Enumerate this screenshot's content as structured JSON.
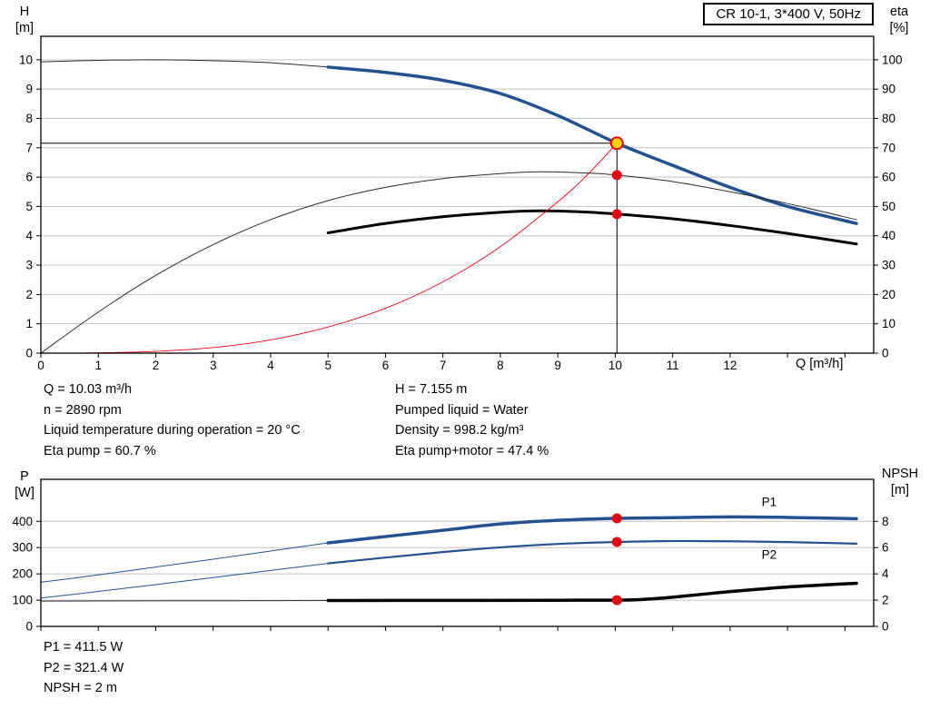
{
  "title_box": "CR 10-1, 3*400 V, 50Hz",
  "axes_labels": {
    "top_left_1": "H",
    "top_left_2": "[m]",
    "top_right_1": "eta",
    "top_right_2": "[%]",
    "x_axis": "Q [m³/h]",
    "bottom_left_1": "P",
    "bottom_left_2": "[W]",
    "bottom_right_1": "NPSH",
    "bottom_right_2": "[m]"
  },
  "operating_info": {
    "left": [
      "Q = 10.03 m³/h",
      "n = 2890 rpm",
      "Liquid temperature during operation = 20 °C",
      "Eta pump = 60.7 %"
    ],
    "right": [
      "H = 7.155 m",
      "Pumped liquid = Water",
      "Density = 998.2 kg/m³",
      "Eta pump+motor = 47.4 %"
    ]
  },
  "power_info": [
    "P1 = 411.5 W",
    "P2 = 321.4 W",
    "NPSH = 2 m"
  ],
  "colors": {
    "curve_blue": "#24518f",
    "curve_red": "#e30613",
    "marker_yellow": "#ffd500",
    "grid_gray": "#c4c4c4",
    "black": "#000000"
  },
  "chart_data": [
    {
      "id": "hq-eta-chart",
      "type": "line",
      "title": "CR 10-1, 3*400 V, 50Hz",
      "x_axis": {
        "label": "Q [m³/h]",
        "min": 0,
        "max": 14.5,
        "ticks": [
          0,
          1,
          2,
          3,
          4,
          5,
          6,
          7,
          8,
          9,
          10,
          11,
          12,
          13,
          14
        ],
        "labels": [
          0,
          1,
          2,
          3,
          4,
          5,
          6,
          7,
          8,
          9,
          10,
          11,
          12
        ]
      },
      "y_left": {
        "label": "H [m]",
        "min": 0,
        "max": 10.8,
        "ticks": [
          0,
          1,
          2,
          3,
          4,
          5,
          6,
          7,
          8,
          9,
          10
        ],
        "grid": [
          1,
          2,
          3,
          4,
          5,
          6,
          7,
          8,
          9,
          10
        ]
      },
      "y_right": {
        "label": "eta [%]",
        "min": 0,
        "max": 108,
        "ticks": [
          0,
          10,
          20,
          30,
          40,
          50,
          60,
          70,
          80,
          90,
          100
        ]
      },
      "ref_lines": [
        {
          "name": "duty-head-line",
          "axis": "left",
          "color": "#000000",
          "width": 1,
          "points": [
            [
              0,
              7.155
            ],
            [
              10.03,
              7.155
            ]
          ]
        },
        {
          "name": "duty-flow-line",
          "axis": "left",
          "color": "#000000",
          "width": 1,
          "points": [
            [
              10.03,
              0
            ],
            [
              10.03,
              7.155
            ]
          ]
        }
      ],
      "series": [
        {
          "name": "head-curve-low-flow",
          "axis": "left",
          "color": "#2a2a2a",
          "width": 1,
          "points": [
            [
              0,
              9.93
            ],
            [
              1,
              9.98
            ],
            [
              2,
              10.0
            ],
            [
              3,
              9.97
            ],
            [
              4,
              9.9
            ],
            [
              5,
              9.75
            ]
          ]
        },
        {
          "name": "head-curve-main",
          "axis": "left",
          "color": "#24518f",
          "width": 3.5,
          "points": [
            [
              5,
              9.75
            ],
            [
              6,
              9.57
            ],
            [
              7,
              9.3
            ],
            [
              8,
              8.85
            ],
            [
              9,
              8.1
            ],
            [
              10.03,
              7.155
            ],
            [
              11,
              6.4
            ],
            [
              12,
              5.65
            ],
            [
              13,
              5.0
            ],
            [
              14.2,
              4.42
            ]
          ]
        },
        {
          "name": "eta-pump-curve",
          "axis": "right",
          "color": "#2a2a2a",
          "width": 1,
          "points": [
            [
              0,
              0
            ],
            [
              1,
              14
            ],
            [
              2,
              26.5
            ],
            [
              3,
              37
            ],
            [
              4,
              45.5
            ],
            [
              5,
              52
            ],
            [
              6,
              56.5
            ],
            [
              7,
              59.5
            ],
            [
              8,
              61.2
            ],
            [
              8.7,
              61.8
            ],
            [
              9.5,
              61.4
            ],
            [
              10.03,
              60.7
            ],
            [
              11,
              58.5
            ],
            [
              12,
              55
            ],
            [
              13,
              51
            ],
            [
              14.2,
              45.5
            ]
          ]
        },
        {
          "name": "eta-pump-motor-curve",
          "axis": "right",
          "color": "#000000",
          "width": 3,
          "points": [
            [
              5,
              41
            ],
            [
              6,
              44.2
            ],
            [
              7,
              46.5
            ],
            [
              8,
              48
            ],
            [
              8.7,
              48.5
            ],
            [
              9.5,
              48.1
            ],
            [
              10.03,
              47.4
            ],
            [
              11,
              45.8
            ],
            [
              12,
              43.5
            ],
            [
              13,
              40.8
            ],
            [
              14.2,
              37.2
            ]
          ]
        },
        {
          "name": "system-curve",
          "axis": "left",
          "color": "#e30613",
          "width": 0.9,
          "points": [
            [
              0,
              0
            ],
            [
              1,
              0.01
            ],
            [
              2,
              0.06
            ],
            [
              3,
              0.19
            ],
            [
              4,
              0.45
            ],
            [
              5,
              0.89
            ],
            [
              6,
              1.53
            ],
            [
              7,
              2.43
            ],
            [
              8,
              3.63
            ],
            [
              9,
              5.16
            ],
            [
              9.5,
              6.05
            ],
            [
              10.03,
              7.155
            ]
          ]
        }
      ],
      "markers": [
        {
          "name": "duty-point",
          "x": 10.03,
          "y": 7.155,
          "axis": "left",
          "r": 6.5,
          "fill": "#ffd500",
          "stroke": "#e30613",
          "stroke_width": 2
        },
        {
          "name": "eta-pump-point",
          "x": 10.03,
          "y": 60.7,
          "axis": "right",
          "r": 5,
          "fill": "#e30613",
          "stroke": "#e30613",
          "stroke_width": 1
        },
        {
          "name": "eta-pump-motor-point",
          "x": 10.03,
          "y": 47.4,
          "axis": "right",
          "r": 5,
          "fill": "#e30613",
          "stroke": "#e30613",
          "stroke_width": 1
        }
      ],
      "annotations": []
    },
    {
      "id": "power-npsh-chart",
      "type": "line",
      "x_axis": {
        "label": "",
        "min": 0,
        "max": 14.5,
        "ticks": [
          0,
          1,
          2,
          3,
          4,
          5,
          6,
          7,
          8,
          9,
          10,
          11,
          12,
          13,
          14
        ],
        "labels": []
      },
      "y_left": {
        "label": "P [W]",
        "min": 0,
        "max": 560,
        "ticks": [
          0,
          100,
          200,
          300,
          400
        ],
        "grid": [
          100,
          200,
          300,
          400
        ]
      },
      "y_right": {
        "label": "NPSH [m]",
        "min": 0,
        "max": 11.2,
        "ticks": [
          0,
          2,
          4,
          6,
          8
        ]
      },
      "ref_lines": [],
      "series": [
        {
          "name": "p1-curve-low-flow",
          "axis": "left",
          "color": "#24518f",
          "width": 1,
          "points": [
            [
              0,
              168
            ],
            [
              1,
              196
            ],
            [
              2,
              226
            ],
            [
              3,
              256
            ],
            [
              4,
              287
            ],
            [
              5,
              318
            ]
          ]
        },
        {
          "name": "p2-curve-low-flow",
          "axis": "left",
          "color": "#24518f",
          "width": 1,
          "points": [
            [
              0,
              108
            ],
            [
              1,
              133
            ],
            [
              2,
              159
            ],
            [
              3,
              186
            ],
            [
              4,
              213
            ],
            [
              5,
              240
            ]
          ]
        },
        {
          "name": "npsh-curve-low-flow",
          "axis": "right",
          "color": "#2a2a2a",
          "width": 1,
          "points": [
            [
              0,
              1.93
            ],
            [
              2.5,
              1.95
            ],
            [
              5,
              1.97
            ]
          ]
        },
        {
          "name": "p1-curve",
          "axis": "left",
          "color": "#24518f",
          "width": 3.5,
          "points": [
            [
              5,
              318
            ],
            [
              6,
              342
            ],
            [
              7,
              366
            ],
            [
              8,
              390
            ],
            [
              9,
              404
            ],
            [
              10.03,
              411.5
            ],
            [
              11,
              414
            ],
            [
              12,
              417
            ],
            [
              13,
              415
            ],
            [
              14.2,
              410
            ]
          ]
        },
        {
          "name": "p2-curve",
          "axis": "left",
          "color": "#24518f",
          "width": 2.2,
          "points": [
            [
              5,
              240
            ],
            [
              6,
              262
            ],
            [
              7,
              283
            ],
            [
              8,
              301
            ],
            [
              9,
              314
            ],
            [
              10.03,
              321.4
            ],
            [
              11,
              325
            ],
            [
              12,
              324
            ],
            [
              13,
              321
            ],
            [
              14.2,
              315
            ]
          ]
        },
        {
          "name": "npsh-curve",
          "axis": "right",
          "color": "#000000",
          "width": 3.5,
          "points": [
            [
              5,
              1.97
            ],
            [
              7,
              1.98
            ],
            [
              9,
              1.99
            ],
            [
              10.03,
              2.0
            ],
            [
              10.5,
              2.06
            ],
            [
              11,
              2.22
            ],
            [
              12,
              2.65
            ],
            [
              13,
              3.0
            ],
            [
              14.2,
              3.28
            ]
          ]
        }
      ],
      "markers": [
        {
          "name": "p1-duty-point",
          "x": 10.03,
          "y": 411.5,
          "axis": "left",
          "r": 5,
          "fill": "#e30613",
          "stroke": "#e30613",
          "stroke_width": 1
        },
        {
          "name": "p2-duty-point",
          "x": 10.03,
          "y": 321.4,
          "axis": "left",
          "r": 5,
          "fill": "#e30613",
          "stroke": "#e30613",
          "stroke_width": 1
        },
        {
          "name": "npsh-duty-point",
          "x": 10.03,
          "y": 2.0,
          "axis": "right",
          "r": 5,
          "fill": "#e30613",
          "stroke": "#e30613",
          "stroke_width": 1
        }
      ],
      "annotations": [
        {
          "name": "p1-label",
          "text": "P1",
          "x": 12.55,
          "y": 458,
          "axis": "left",
          "color": "#24518f"
        },
        {
          "name": "p2-label",
          "text": "P2",
          "x": 12.55,
          "y": 258,
          "axis": "left",
          "color": "#24518f"
        }
      ]
    }
  ]
}
